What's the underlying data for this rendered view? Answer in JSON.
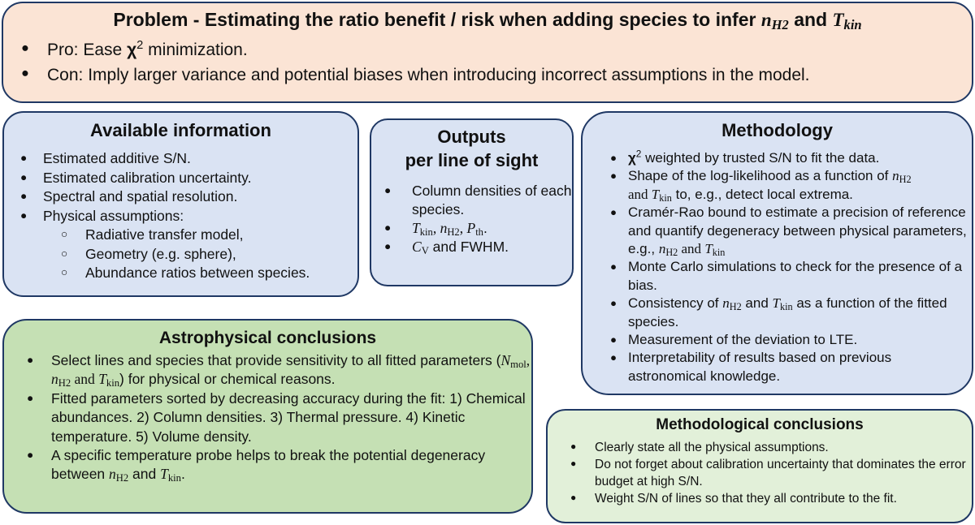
{
  "problem": {
    "title": "Problem - Estimating the ratio benefit / risk when adding species to infer",
    "title_and": "and",
    "items": [
      {
        "pre": "Pro: Ease ",
        "chi": "χ",
        "sup": "2",
        "post": " minimization."
      },
      {
        "text": "Con: Imply larger variance and potential biases when introducing incorrect assumptions in the model."
      }
    ]
  },
  "available": {
    "title": "Available information",
    "items": [
      "Estimated additive S/N.",
      "Estimated calibration uncertainty.",
      "Spectral and spatial resolution.",
      "Physical assumptions:"
    ],
    "subitems": [
      "Radiative transfer model,",
      "Geometry (e.g. sphere),",
      "Abundance ratios between species."
    ]
  },
  "outputs": {
    "title_line1": "Outputs",
    "title_line2": "per line of sight",
    "item1": "Column densities of each species.",
    "item2_end": ".",
    "item3_and": " and FWHM."
  },
  "methodology": {
    "title": "Methodology",
    "items": [
      {
        "chi": "χ",
        "sup": "2",
        "text": " weighted by trusted S/N to fit the data."
      },
      {
        "text_a": "Shape of the log-likelihood as a function of ",
        "text_and": "and ",
        "text_b": " to, e.g., detect local extrema."
      },
      {
        "text_a": "Cramér-Rao bound to estimate a precision of reference and quantify degeneracy between physical parameters, e.g., ",
        "text_and": " and "
      },
      {
        "text": "Monte Carlo simulations to check for the presence of a  bias."
      },
      {
        "text_a": "Consistency of ",
        "text_and": " and ",
        "text_b": " as a function of the fitted species."
      },
      {
        "text": "Measurement of the deviation to LTE."
      },
      {
        "text": "Interpretability of results based on previous astronomical knowledge."
      }
    ]
  },
  "astro": {
    "title": "Astrophysical conclusions",
    "items": [
      {
        "text_a": "Select lines and species that provide sensitivity to all fitted parameters (",
        "text_and": " and ",
        "text_b": ") for physical or chemical reasons."
      },
      {
        "text": "Fitted parameters sorted by decreasing accuracy during the fit: 1) Chemical abundances. 2) Column densities. 3) Thermal pressure. 4) Kinetic temperature. 5) Volume density."
      },
      {
        "text_a": "A specific temperature probe helps to break the potential degeneracy between ",
        "text_and": " and ",
        "text_b": "."
      }
    ]
  },
  "mconc": {
    "title": "Methodological conclusions",
    "items": [
      "Clearly state all the physical assumptions.",
      "Do not forget about calibration uncertainty that dominates the error budget at high S/N.",
      "Weight S/N of lines so that they all contribute to the fit."
    ]
  },
  "symbols": {
    "n": "n",
    "H2": "H2",
    "T": "T",
    "kin": "kin",
    "P": "P",
    "th": "th",
    "C": "C",
    "V": "V",
    "N": "N",
    "mol": "mol"
  }
}
